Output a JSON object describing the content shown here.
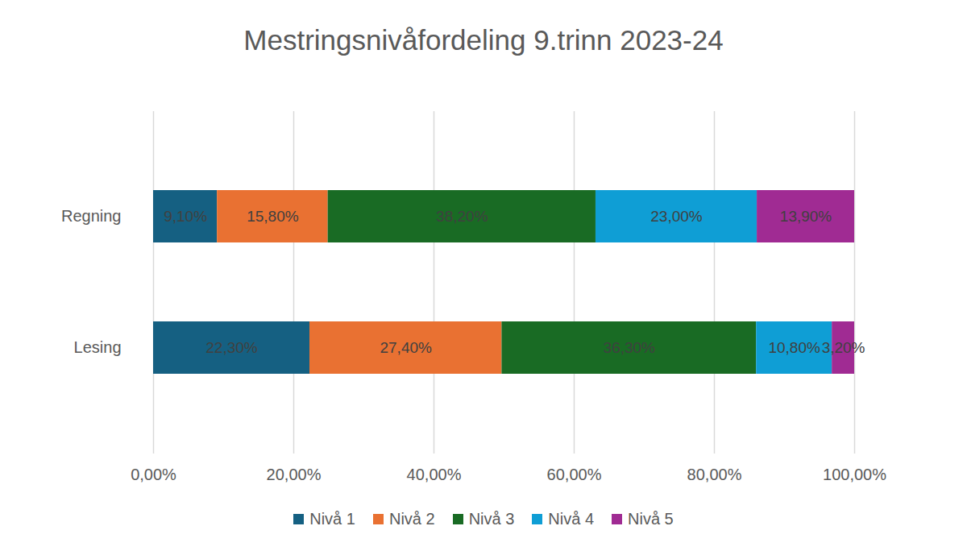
{
  "chart_data": {
    "type": "bar",
    "title": "Mestringsnivåfordeling 9.trinn 2023-24",
    "orientation": "horizontal",
    "stacked": true,
    "data_labels": true,
    "grid": true,
    "legend": "bottom",
    "categories": [
      "Regning",
      "Lesing"
    ],
    "series": [
      {
        "name": "Nivå 1",
        "color": "#156082",
        "values": [
          9.1,
          22.3
        ],
        "value_labels": [
          "9,10%",
          "22,30%"
        ]
      },
      {
        "name": "Nivå 2",
        "color": "#e97132",
        "values": [
          15.8,
          27.4
        ],
        "value_labels": [
          "15,80%",
          "27,40%"
        ]
      },
      {
        "name": "Nivå 3",
        "color": "#196b24",
        "values": [
          38.2,
          36.3
        ],
        "value_labels": [
          "38,20%",
          "36,30%"
        ]
      },
      {
        "name": "Nivå 4",
        "color": "#0f9ed5",
        "values": [
          23.0,
          10.8
        ],
        "value_labels": [
          "23,00%",
          "10,80%"
        ]
      },
      {
        "name": "Nivå 5",
        "color": "#a02b93",
        "values": [
          13.9,
          3.2
        ],
        "value_labels": [
          "13,90%",
          "3,20%"
        ]
      }
    ],
    "xlim": [
      0,
      100
    ],
    "xticks": [
      {
        "value": 0,
        "label": "0,00%"
      },
      {
        "value": 20,
        "label": "20,00%"
      },
      {
        "value": 40,
        "label": "40,00%"
      },
      {
        "value": 60,
        "label": "60,00%"
      },
      {
        "value": 80,
        "label": "80,00%"
      },
      {
        "value": 100,
        "label": "100,00%"
      }
    ]
  }
}
